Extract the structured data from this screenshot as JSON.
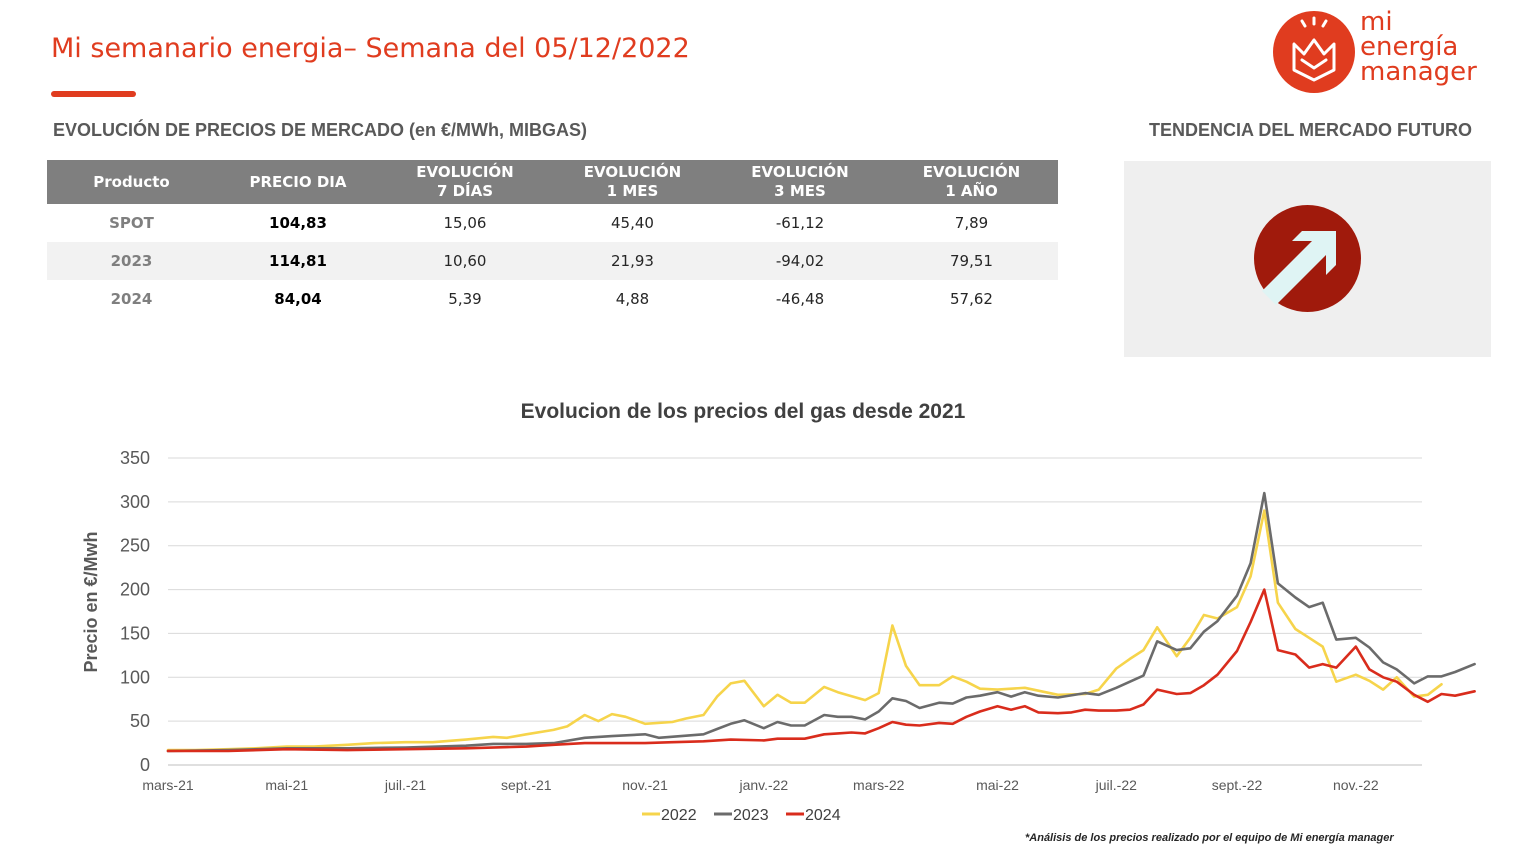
{
  "header": {
    "title": "Mi semanario energia– Semana del 05/12/2022",
    "logo_lines": [
      "mi",
      "energía",
      "manager"
    ]
  },
  "table_section": {
    "heading": "EVOLUCIÓN DE PRECIOS DE MERCADO (en €/MWh, MIBGAS)",
    "columns": [
      {
        "line1": "Producto",
        "line2": ""
      },
      {
        "line1": "PRECIO DIA",
        "line2": ""
      },
      {
        "line1": "EVOLUCIÓN",
        "line2": "7 DÍAS"
      },
      {
        "line1": "EVOLUCIÓN",
        "line2": "1 MES"
      },
      {
        "line1": "EVOLUCIÓN",
        "line2": "3 MES"
      },
      {
        "line1": "EVOLUCIÓN",
        "line2": "1 AÑO"
      }
    ],
    "rows": [
      [
        "SPOT",
        "104,83",
        "15,06",
        "45,40",
        "-61,12",
        "7,89"
      ],
      [
        "2023",
        "114,81",
        "10,60",
        "21,93",
        "-94,02",
        "79,51"
      ],
      [
        "2024",
        "84,04",
        "5,39",
        "4,88",
        "-46,48",
        "57,62"
      ]
    ]
  },
  "trend_section": {
    "heading": "TENDENCIA DEL MERCADO FUTURO",
    "icon": "arrow-up-right-icon",
    "color": "#a01a0c"
  },
  "chart_data": {
    "type": "line",
    "title": "Evolucion de los precios del gas desde 2021",
    "xlabel": "",
    "ylabel": "Precio en €/Mwh",
    "ylim": [
      0,
      350
    ],
    "yticks": [
      0,
      50,
      100,
      150,
      200,
      250,
      300,
      350
    ],
    "xlim": [
      "2021-03-01",
      "2022-12-05"
    ],
    "xticks": [
      {
        "date": "2021-03-01",
        "label": "mars-21"
      },
      {
        "date": "2021-05-01",
        "label": "mai-21"
      },
      {
        "date": "2021-07-01",
        "label": "juil.-21"
      },
      {
        "date": "2021-09-01",
        "label": "sept.-21"
      },
      {
        "date": "2021-11-01",
        "label": "nov.-21"
      },
      {
        "date": "2022-01-01",
        "label": "janv.-22"
      },
      {
        "date": "2022-03-01",
        "label": "mars-22"
      },
      {
        "date": "2022-05-01",
        "label": "mai-22"
      },
      {
        "date": "2022-07-01",
        "label": "juil.-22"
      },
      {
        "date": "2022-09-01",
        "label": "sept.-22"
      },
      {
        "date": "2022-11-01",
        "label": "nov.-22"
      }
    ],
    "grid": "horizontal",
    "legend_position": "bottom",
    "series": [
      {
        "name": "2022",
        "color": "#f6d44b",
        "points": [
          [
            "2021-03-01",
            17
          ],
          [
            "2021-03-15",
            17
          ],
          [
            "2021-04-01",
            18
          ],
          [
            "2021-04-15",
            19
          ],
          [
            "2021-05-01",
            21
          ],
          [
            "2021-05-15",
            21
          ],
          [
            "2021-06-01",
            23
          ],
          [
            "2021-06-15",
            25
          ],
          [
            "2021-07-01",
            26
          ],
          [
            "2021-07-15",
            26
          ],
          [
            "2021-08-01",
            29
          ],
          [
            "2021-08-15",
            32
          ],
          [
            "2021-08-22",
            31
          ],
          [
            "2021-09-01",
            35
          ],
          [
            "2021-09-15",
            40
          ],
          [
            "2021-09-22",
            44
          ],
          [
            "2021-10-01",
            57
          ],
          [
            "2021-10-08",
            50
          ],
          [
            "2021-10-15",
            58
          ],
          [
            "2021-10-22",
            55
          ],
          [
            "2021-11-01",
            47
          ],
          [
            "2021-11-15",
            49
          ],
          [
            "2021-11-22",
            53
          ],
          [
            "2021-12-01",
            57
          ],
          [
            "2021-12-08",
            78
          ],
          [
            "2021-12-15",
            93
          ],
          [
            "2021-12-22",
            96
          ],
          [
            "2022-01-01",
            67
          ],
          [
            "2022-01-08",
            80
          ],
          [
            "2022-01-15",
            71
          ],
          [
            "2022-01-22",
            71
          ],
          [
            "2022-02-01",
            89
          ],
          [
            "2022-02-08",
            83
          ],
          [
            "2022-02-22",
            74
          ],
          [
            "2022-03-01",
            82
          ],
          [
            "2022-03-08",
            159
          ],
          [
            "2022-03-15",
            113
          ],
          [
            "2022-03-22",
            91
          ],
          [
            "2022-04-01",
            91
          ],
          [
            "2022-04-08",
            101
          ],
          [
            "2022-04-15",
            95
          ],
          [
            "2022-04-22",
            87
          ],
          [
            "2022-05-01",
            86
          ],
          [
            "2022-05-15",
            88
          ],
          [
            "2022-06-01",
            80
          ],
          [
            "2022-06-15",
            81
          ],
          [
            "2022-06-22",
            86
          ],
          [
            "2022-07-01",
            110
          ],
          [
            "2022-07-08",
            121
          ],
          [
            "2022-07-15",
            131
          ],
          [
            "2022-07-22",
            157
          ],
          [
            "2022-08-01",
            124
          ],
          [
            "2022-08-08",
            145
          ],
          [
            "2022-08-15",
            171
          ],
          [
            "2022-08-22",
            167
          ],
          [
            "2022-09-01",
            180
          ],
          [
            "2022-09-08",
            215
          ],
          [
            "2022-09-15",
            290
          ],
          [
            "2022-09-22",
            185
          ],
          [
            "2022-10-01",
            155
          ],
          [
            "2022-10-08",
            145
          ],
          [
            "2022-10-15",
            135
          ],
          [
            "2022-10-22",
            95
          ],
          [
            "2022-11-01",
            103
          ],
          [
            "2022-11-08",
            96
          ],
          [
            "2022-11-15",
            86
          ],
          [
            "2022-11-22",
            100
          ],
          [
            "2022-12-01",
            78
          ],
          [
            "2022-12-08",
            80
          ],
          [
            "2022-12-15",
            92
          ]
        ]
      },
      {
        "name": "2023",
        "color": "#6b6b6b",
        "points": [
          [
            "2021-03-01",
            16
          ],
          [
            "2021-04-01",
            17
          ],
          [
            "2021-05-01",
            19
          ],
          [
            "2021-06-01",
            19
          ],
          [
            "2021-07-01",
            20
          ],
          [
            "2021-08-01",
            22
          ],
          [
            "2021-08-15",
            24
          ],
          [
            "2021-09-01",
            24
          ],
          [
            "2021-09-15",
            25
          ],
          [
            "2021-10-01",
            31
          ],
          [
            "2021-10-15",
            33
          ],
          [
            "2021-11-01",
            35
          ],
          [
            "2021-11-08",
            31
          ],
          [
            "2021-12-01",
            35
          ],
          [
            "2021-12-08",
            41
          ],
          [
            "2021-12-15",
            47
          ],
          [
            "2021-12-22",
            51
          ],
          [
            "2022-01-01",
            42
          ],
          [
            "2022-01-08",
            49
          ],
          [
            "2022-01-15",
            45
          ],
          [
            "2022-01-22",
            45
          ],
          [
            "2022-02-01",
            57
          ],
          [
            "2022-02-08",
            55
          ],
          [
            "2022-02-15",
            55
          ],
          [
            "2022-02-22",
            52
          ],
          [
            "2022-03-01",
            61
          ],
          [
            "2022-03-08",
            76
          ],
          [
            "2022-03-15",
            73
          ],
          [
            "2022-03-22",
            65
          ],
          [
            "2022-04-01",
            71
          ],
          [
            "2022-04-08",
            70
          ],
          [
            "2022-04-15",
            77
          ],
          [
            "2022-04-22",
            79
          ],
          [
            "2022-05-01",
            83
          ],
          [
            "2022-05-08",
            78
          ],
          [
            "2022-05-15",
            83
          ],
          [
            "2022-05-22",
            79
          ],
          [
            "2022-06-01",
            77
          ],
          [
            "2022-06-15",
            82
          ],
          [
            "2022-06-22",
            80
          ],
          [
            "2022-07-01",
            88
          ],
          [
            "2022-07-15",
            102
          ],
          [
            "2022-07-22",
            141
          ],
          [
            "2022-08-01",
            131
          ],
          [
            "2022-08-08",
            133
          ],
          [
            "2022-08-15",
            152
          ],
          [
            "2022-08-22",
            164
          ],
          [
            "2022-09-01",
            193
          ],
          [
            "2022-09-08",
            230
          ],
          [
            "2022-09-15",
            310
          ],
          [
            "2022-09-22",
            207
          ],
          [
            "2022-10-01",
            191
          ],
          [
            "2022-10-08",
            180
          ],
          [
            "2022-10-15",
            185
          ],
          [
            "2022-10-22",
            143
          ],
          [
            "2022-11-01",
            145
          ],
          [
            "2022-11-08",
            134
          ],
          [
            "2022-11-15",
            117
          ],
          [
            "2022-11-22",
            109
          ],
          [
            "2022-12-01",
            93
          ],
          [
            "2022-12-08",
            101
          ],
          [
            "2022-12-15",
            101
          ],
          [
            "2022-12-22",
            106
          ],
          [
            "2023-01-01",
            115
          ]
        ]
      },
      {
        "name": "2024",
        "color": "#d92c1c",
        "points": [
          [
            "2021-03-01",
            16
          ],
          [
            "2021-04-01",
            16
          ],
          [
            "2021-05-01",
            18
          ],
          [
            "2021-06-01",
            17
          ],
          [
            "2021-07-01",
            18
          ],
          [
            "2021-08-01",
            19
          ],
          [
            "2021-09-01",
            21
          ],
          [
            "2021-09-15",
            23
          ],
          [
            "2021-10-01",
            25
          ],
          [
            "2021-10-15",
            25
          ],
          [
            "2021-11-01",
            25
          ],
          [
            "2021-11-15",
            26
          ],
          [
            "2021-12-01",
            27
          ],
          [
            "2021-12-15",
            29
          ],
          [
            "2022-01-01",
            28
          ],
          [
            "2022-01-08",
            30
          ],
          [
            "2022-01-22",
            30
          ],
          [
            "2022-02-01",
            35
          ],
          [
            "2022-02-08",
            36
          ],
          [
            "2022-02-15",
            37
          ],
          [
            "2022-02-22",
            36
          ],
          [
            "2022-03-01",
            42
          ],
          [
            "2022-03-08",
            49
          ],
          [
            "2022-03-15",
            46
          ],
          [
            "2022-03-22",
            45
          ],
          [
            "2022-04-01",
            48
          ],
          [
            "2022-04-08",
            47
          ],
          [
            "2022-04-15",
            55
          ],
          [
            "2022-04-22",
            61
          ],
          [
            "2022-05-01",
            67
          ],
          [
            "2022-05-08",
            63
          ],
          [
            "2022-05-15",
            67
          ],
          [
            "2022-05-22",
            60
          ],
          [
            "2022-06-01",
            59
          ],
          [
            "2022-06-08",
            60
          ],
          [
            "2022-06-15",
            63
          ],
          [
            "2022-06-22",
            62
          ],
          [
            "2022-07-01",
            62
          ],
          [
            "2022-07-08",
            63
          ],
          [
            "2022-07-15",
            69
          ],
          [
            "2022-07-22",
            86
          ],
          [
            "2022-08-01",
            81
          ],
          [
            "2022-08-08",
            82
          ],
          [
            "2022-08-15",
            91
          ],
          [
            "2022-08-22",
            103
          ],
          [
            "2022-09-01",
            130
          ],
          [
            "2022-09-08",
            163
          ],
          [
            "2022-09-15",
            200
          ],
          [
            "2022-09-22",
            131
          ],
          [
            "2022-10-01",
            126
          ],
          [
            "2022-10-08",
            111
          ],
          [
            "2022-10-15",
            115
          ],
          [
            "2022-10-22",
            111
          ],
          [
            "2022-11-01",
            135
          ],
          [
            "2022-11-08",
            109
          ],
          [
            "2022-11-15",
            100
          ],
          [
            "2022-11-22",
            95
          ],
          [
            "2022-12-01",
            80
          ],
          [
            "2022-12-08",
            72
          ],
          [
            "2022-12-15",
            81
          ],
          [
            "2022-12-22",
            79
          ],
          [
            "2023-01-01",
            84
          ]
        ]
      }
    ]
  },
  "footnote": "*Análisis de los precios realizado por el equipo de Mi energía manager"
}
